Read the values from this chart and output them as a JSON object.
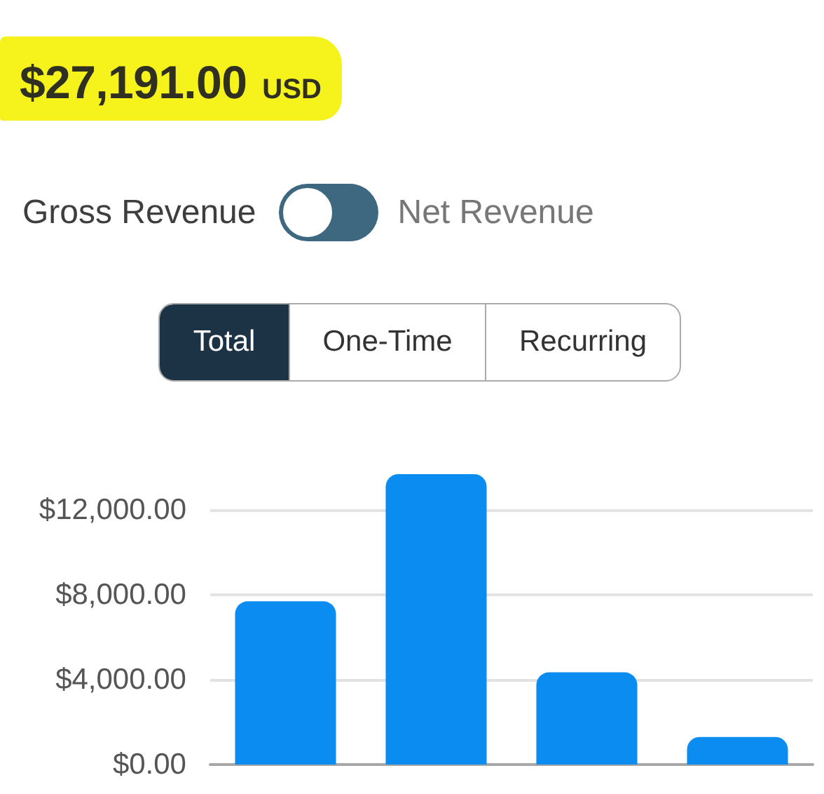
{
  "chart_data": {
    "type": "bar",
    "title": "$27,191.00",
    "subtitle": "USD",
    "annotations": [
      "Gross Revenue",
      "Net Revenue",
      "Total",
      "One-Time",
      "Recurring"
    ],
    "categories": [
      null,
      null,
      null,
      null
    ],
    "values": [
      7700,
      13700,
      4350,
      1300
    ],
    "color": "#0b8cf1",
    "ylim": [
      0,
      13700
    ],
    "yticks": [
      {
        "value": 0,
        "label": "$0.00"
      },
      {
        "value": 4000,
        "label": "$4,000.00"
      },
      {
        "value": 8000,
        "label": "$8,000.00"
      },
      {
        "value": 12000,
        "label": "$12,000.00"
      }
    ],
    "grid": "y",
    "tick_labels": "y"
  }
}
